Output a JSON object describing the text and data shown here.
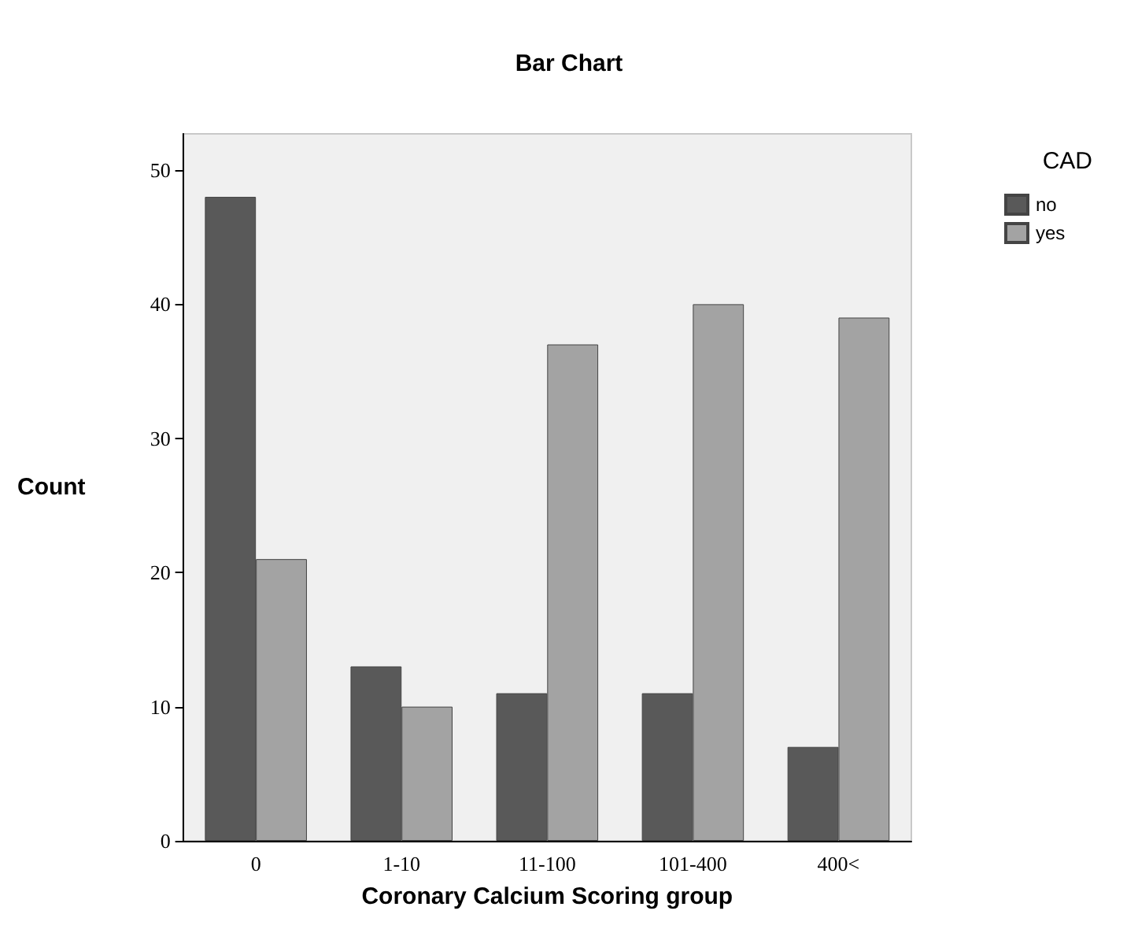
{
  "chart_data": {
    "type": "bar",
    "title": "Bar Chart",
    "xlabel": "Coronary Calcium Scoring group",
    "ylabel": "Count",
    "legend_title": "CAD",
    "categories": [
      "0",
      "1-10",
      "11-100",
      "101-400",
      "400<"
    ],
    "series": [
      {
        "name": "no",
        "color": "#595959",
        "values": [
          48,
          13,
          11,
          11,
          7
        ]
      },
      {
        "name": "yes",
        "color": "#a3a3a3",
        "values": [
          21,
          10,
          37,
          40,
          39
        ]
      }
    ],
    "ylim": [
      0,
      52.7
    ],
    "yticks": [
      0,
      10,
      20,
      30,
      40,
      50
    ],
    "grid": false,
    "legend": "top right"
  }
}
